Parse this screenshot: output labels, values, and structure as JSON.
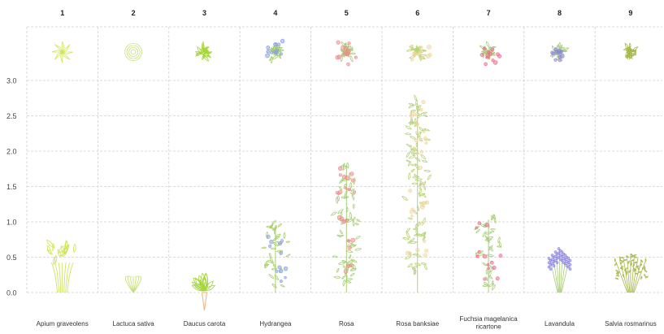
{
  "y_axis": {
    "ticks": [
      "3.0",
      "2.5",
      "2.0",
      "1.5",
      "1.0",
      "0.5",
      "0.0"
    ],
    "ylim": [
      0,
      3
    ]
  },
  "plants": [
    {
      "number": "1",
      "name": "Apium graveolens",
      "height": 0.65,
      "color": "#cde65a",
      "accent": "#cde65a",
      "form": "celery"
    },
    {
      "number": "2",
      "name": "Lactuca sativa",
      "height": 0.25,
      "color": "#c8e07a",
      "accent": "#c8e07a",
      "form": "lettuce"
    },
    {
      "number": "3",
      "name": "Daucus carota",
      "height": 0.35,
      "color": "#a6d63a",
      "accent": "#f2b27a",
      "form": "carrot"
    },
    {
      "number": "4",
      "name": "Hydrangea",
      "height": 0.98,
      "color": "#a9cf6a",
      "accent": "#8aa3e6",
      "form": "shrub"
    },
    {
      "number": "5",
      "name": "Rosa",
      "height": 1.85,
      "color": "#a9cf7a",
      "accent": "#f08a8a",
      "form": "climber"
    },
    {
      "number": "6",
      "name": "Rosa banksiae",
      "height": 2.72,
      "color": "#b7d47a",
      "accent": "#f3d7a0",
      "form": "climber"
    },
    {
      "number": "7",
      "name": "Fuchsia magelanica ricartone",
      "height": 1.08,
      "color": "#a9cf7a",
      "accent": "#f06a8a",
      "form": "bush"
    },
    {
      "number": "8",
      "name": "Lavandula",
      "height": 0.62,
      "color": "#a9cf7a",
      "accent": "#8f86e0",
      "form": "lavender"
    },
    {
      "number": "9",
      "name": "Salvia rosmarinus",
      "height": 0.55,
      "color": "#a8b84a",
      "accent": "#a8b84a",
      "form": "rosemary"
    }
  ]
}
